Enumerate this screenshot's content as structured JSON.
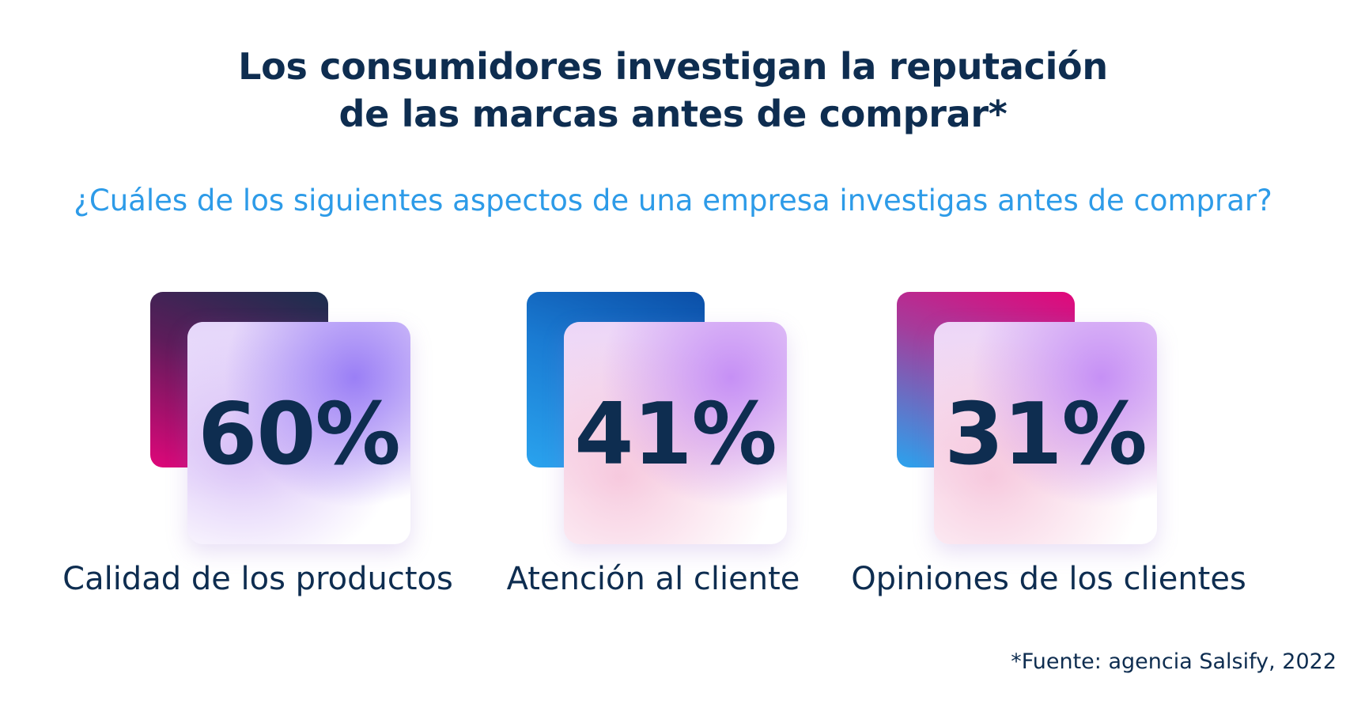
{
  "title": {
    "line1": "Los consumidores investigan la reputación",
    "line2": "de las marcas antes de comprar*"
  },
  "question": "¿Cuáles de los siguientes aspectos de una empresa investigas antes de comprar?",
  "stats": [
    {
      "value": "60%",
      "label": "Calidad de los productos"
    },
    {
      "value": "41%",
      "label": "Atención al cliente"
    },
    {
      "value": "31%",
      "label": "Opiniones de los clientes"
    }
  ],
  "source": "*Fuente: agencia Salsify, 2022",
  "colors": {
    "title": "#0e2d50",
    "question": "#2d9be8",
    "magenta": "#e0077a",
    "blue": "#1a7bd2",
    "purple_glow": "#8c6ef5"
  }
}
